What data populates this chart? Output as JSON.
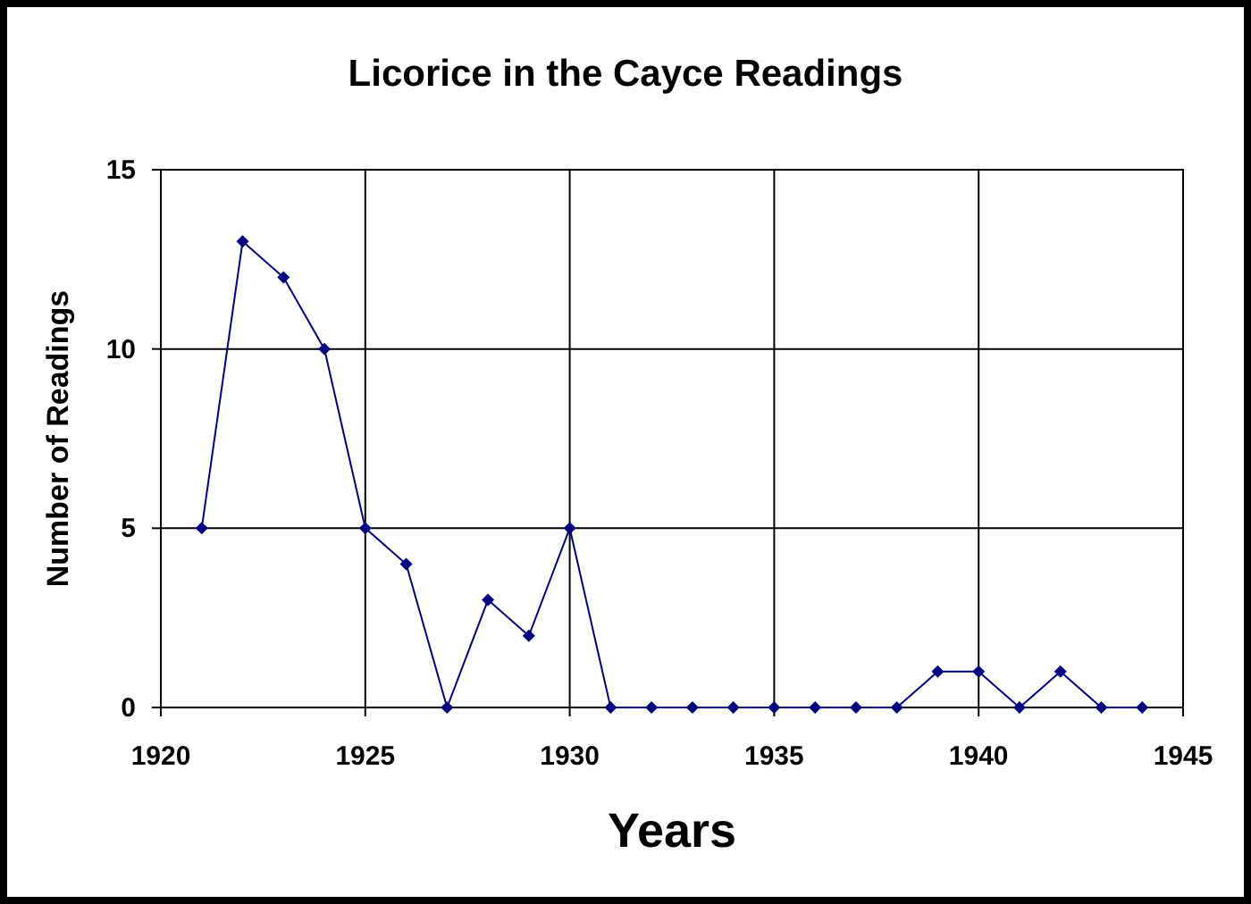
{
  "chart_data": {
    "type": "line",
    "title": "Licorice in the Cayce Readings",
    "xlabel": "Years",
    "ylabel": "Number of Readings",
    "x": [
      1921,
      1922,
      1923,
      1924,
      1925,
      1926,
      1927,
      1928,
      1929,
      1930,
      1931,
      1932,
      1933,
      1934,
      1935,
      1936,
      1937,
      1938,
      1939,
      1940,
      1941,
      1942,
      1943,
      1944
    ],
    "series": [
      {
        "color": "#000080",
        "values": [
          5,
          13,
          12,
          10,
          5,
          4,
          0,
          3,
          2,
          5,
          0,
          0,
          0,
          0,
          0,
          0,
          0,
          0,
          1,
          1,
          0,
          1,
          0,
          0
        ]
      }
    ],
    "xlim": [
      1920,
      1945
    ],
    "xticks": [
      1920,
      1925,
      1930,
      1935,
      1940,
      1945
    ],
    "ylim": [
      0,
      15
    ],
    "yticks": [
      0,
      5,
      10,
      15
    ],
    "grid": true,
    "marker": "diamond",
    "line_style": "solid"
  }
}
